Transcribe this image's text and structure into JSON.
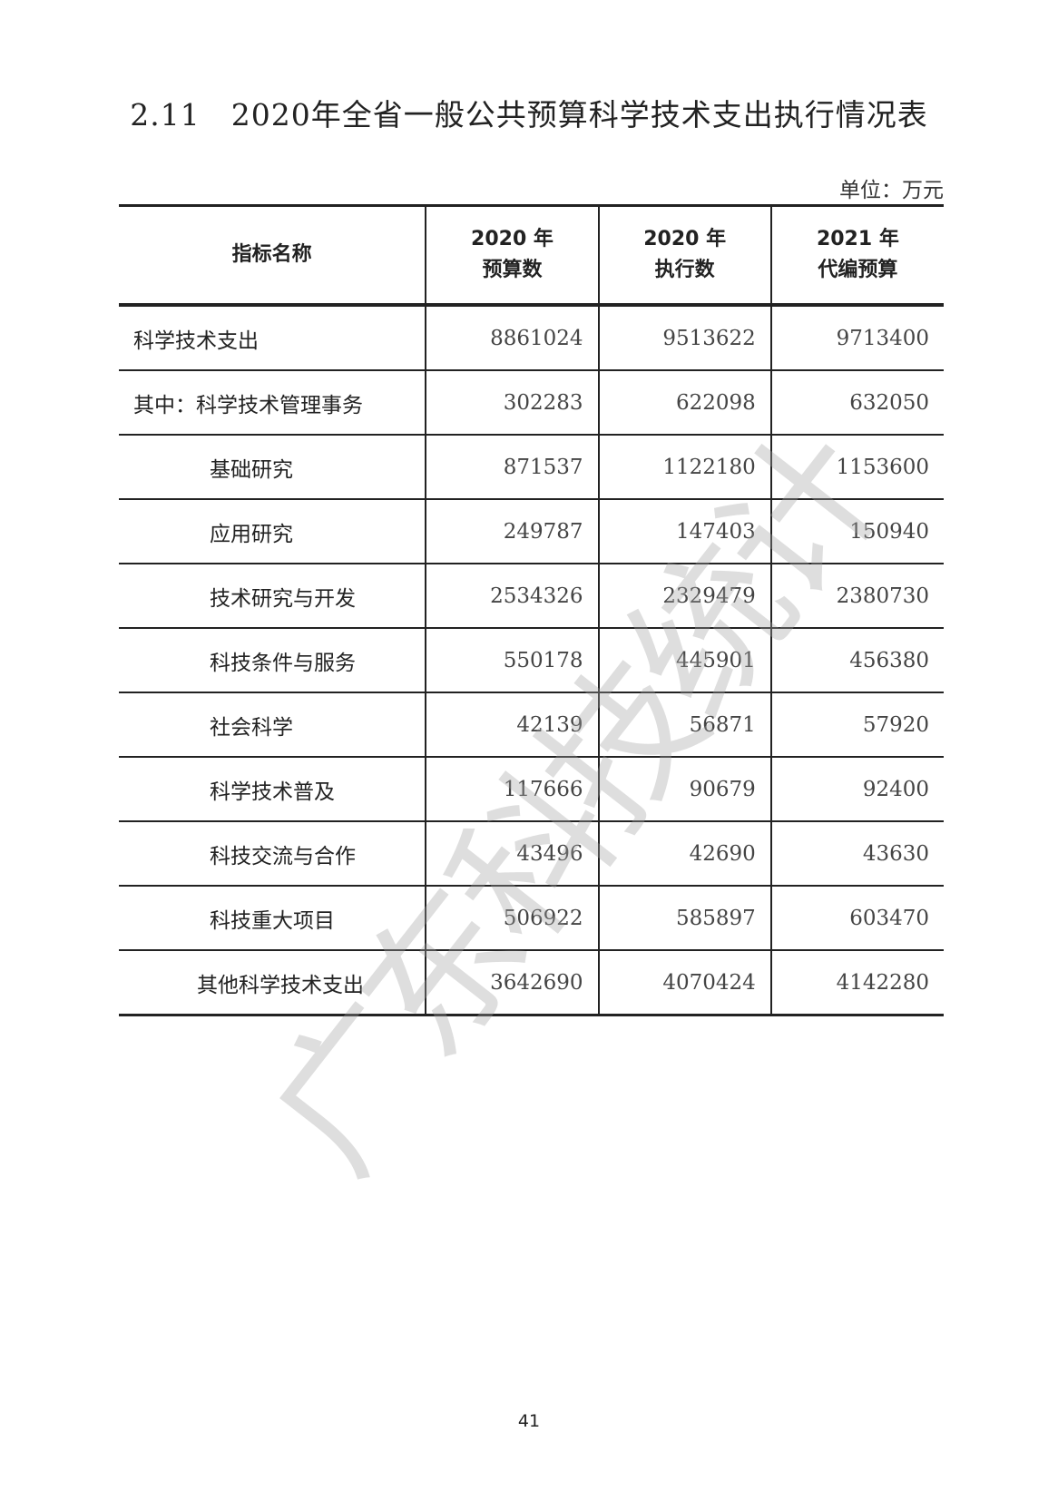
{
  "title": "2.11　2020年全省一般公共预算科学技术支出执行情况表",
  "unit": "单位：万元",
  "table": {
    "headers": [
      "指标名称",
      "2020年\n预算数",
      "2020年\n执行数",
      "2021年\n代编预算"
    ],
    "header_lines": [
      [
        "指标名称"
      ],
      [
        "2020 年",
        "预算数"
      ],
      [
        "2020 年",
        "执行数"
      ],
      [
        "2021 年",
        "代编预算"
      ]
    ],
    "rows": [
      [
        "科学技术支出",
        "8861024",
        "9513622",
        "9713400"
      ],
      [
        "其中：科学技术管理事务",
        "302283",
        "622098",
        "632050"
      ],
      [
        "基础研究",
        "871537",
        "1122180",
        "1153600"
      ],
      [
        "应用研究",
        "249787",
        "147403",
        "150940"
      ],
      [
        "技术研究与开发",
        "2534326",
        "2329479",
        "2380730"
      ],
      [
        "科技条件与服务",
        "550178",
        "445901",
        "456380"
      ],
      [
        "社会科学",
        "42139",
        "56871",
        "57920"
      ],
      [
        "科学技术普及",
        "117666",
        "90679",
        "92400"
      ],
      [
        "科技交流与合作",
        "43496",
        "42690",
        "43630"
      ],
      [
        "科技重大项目",
        "506922",
        "585897",
        "603470"
      ],
      [
        "其他科学技术支出",
        "3642690",
        "4070424",
        "4142280"
      ]
    ]
  },
  "watermark": "广东科技统计",
  "page_number": "41"
}
